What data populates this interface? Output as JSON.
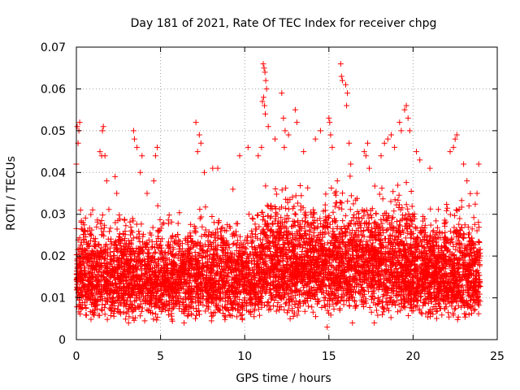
{
  "chart_data": {
    "type": "scatter",
    "title": "Day 181 of 2021, Rate Of TEC Index for receiver chpg",
    "xlabel": "GPS time / hours",
    "ylabel": "ROTI / TECUs",
    "xlim": [
      0,
      25
    ],
    "ylim": [
      0,
      0.07
    ],
    "grid": true,
    "marker": "+",
    "color": "#ff0000",
    "x_ticks": [
      "0",
      "5",
      "10",
      "15",
      "20",
      "25"
    ],
    "y_ticks": [
      "0",
      "0.01",
      "0.02",
      "0.03",
      "0.04",
      "0.05",
      "0.06",
      "0.07"
    ],
    "series": [
      {
        "name": "ROTI",
        "points": [
          [
            0.0,
            0.042
          ],
          [
            0.05,
            0.051
          ],
          [
            0.1,
            0.047
          ],
          [
            0.15,
            0.05
          ],
          [
            0.2,
            0.052
          ],
          [
            0.25,
            0.031
          ],
          [
            0.4,
            0.028
          ],
          [
            1.4,
            0.045
          ],
          [
            1.5,
            0.044
          ],
          [
            1.55,
            0.05
          ],
          [
            1.6,
            0.051
          ],
          [
            1.7,
            0.044
          ],
          [
            1.8,
            0.038
          ],
          [
            2.3,
            0.039
          ],
          [
            2.4,
            0.035
          ],
          [
            3.4,
            0.05
          ],
          [
            3.45,
            0.048
          ],
          [
            3.6,
            0.046
          ],
          [
            3.8,
            0.04
          ],
          [
            3.9,
            0.044
          ],
          [
            4.2,
            0.035
          ],
          [
            4.6,
            0.038
          ],
          [
            4.7,
            0.044
          ],
          [
            4.8,
            0.046
          ],
          [
            7.1,
            0.052
          ],
          [
            7.2,
            0.045
          ],
          [
            7.3,
            0.049
          ],
          [
            7.4,
            0.047
          ],
          [
            7.6,
            0.04
          ],
          [
            8.1,
            0.041
          ],
          [
            8.4,
            0.041
          ],
          [
            9.3,
            0.036
          ],
          [
            9.7,
            0.044
          ],
          [
            10.2,
            0.046
          ],
          [
            10.8,
            0.044
          ],
          [
            11.0,
            0.046
          ],
          [
            11.05,
            0.057
          ],
          [
            11.1,
            0.066
          ],
          [
            11.15,
            0.065
          ],
          [
            11.2,
            0.064
          ],
          [
            11.25,
            0.062
          ],
          [
            11.3,
            0.06
          ],
          [
            11.12,
            0.058
          ],
          [
            11.18,
            0.056
          ],
          [
            11.22,
            0.054
          ],
          [
            11.4,
            0.051
          ],
          [
            11.8,
            0.048
          ],
          [
            12.2,
            0.059
          ],
          [
            12.3,
            0.053
          ],
          [
            12.4,
            0.05
          ],
          [
            12.35,
            0.046
          ],
          [
            12.6,
            0.049
          ],
          [
            13.0,
            0.055
          ],
          [
            13.1,
            0.052
          ],
          [
            13.5,
            0.045
          ],
          [
            14.2,
            0.048
          ],
          [
            14.5,
            0.05
          ],
          [
            15.0,
            0.053
          ],
          [
            15.05,
            0.052
          ],
          [
            15.1,
            0.049
          ],
          [
            15.2,
            0.046
          ],
          [
            15.5,
            0.038
          ],
          [
            15.7,
            0.066
          ],
          [
            15.75,
            0.063
          ],
          [
            15.8,
            0.062
          ],
          [
            16.0,
            0.061
          ],
          [
            16.1,
            0.059
          ],
          [
            16.05,
            0.056
          ],
          [
            16.2,
            0.047
          ],
          [
            16.3,
            0.042
          ],
          [
            17.1,
            0.045
          ],
          [
            17.2,
            0.044
          ],
          [
            17.3,
            0.047
          ],
          [
            17.4,
            0.041
          ],
          [
            18.1,
            0.044
          ],
          [
            18.3,
            0.047
          ],
          [
            18.5,
            0.048
          ],
          [
            18.7,
            0.049
          ],
          [
            18.9,
            0.046
          ],
          [
            19.2,
            0.052
          ],
          [
            19.3,
            0.05
          ],
          [
            19.5,
            0.055
          ],
          [
            19.6,
            0.056
          ],
          [
            19.7,
            0.053
          ],
          [
            19.8,
            0.05
          ],
          [
            20.2,
            0.045
          ],
          [
            20.4,
            0.043
          ],
          [
            21.0,
            0.041
          ],
          [
            22.2,
            0.045
          ],
          [
            22.5,
            0.048
          ],
          [
            22.6,
            0.049
          ],
          [
            22.4,
            0.046
          ],
          [
            23.0,
            0.042
          ],
          [
            23.2,
            0.038
          ],
          [
            23.9,
            0.042
          ],
          [
            23.8,
            0.035
          ],
          [
            14.9,
            0.003
          ],
          [
            16.4,
            0.004
          ],
          [
            17.7,
            0.004
          ],
          [
            3.1,
            0.004
          ],
          [
            6.4,
            0.004
          ],
          [
            12.7,
            0.005
          ]
        ],
        "bands": [
          {
            "x_range": [
              0.0,
              5.6
            ],
            "y_range": [
              0.004,
              0.03
            ],
            "count": 1400
          },
          {
            "x_range": [
              5.6,
              11.0
            ],
            "y_range": [
              0.004,
              0.03
            ],
            "count": 1300
          },
          {
            "x_range": [
              11.0,
              15.6
            ],
            "y_range": [
              0.005,
              0.036
            ],
            "count": 1300
          },
          {
            "x_range": [
              15.6,
              20.0
            ],
            "y_range": [
              0.005,
              0.036
            ],
            "count": 1200
          },
          {
            "x_range": [
              20.0,
              24.0
            ],
            "y_range": [
              0.004,
              0.032
            ],
            "count": 1100
          }
        ]
      }
    ]
  }
}
